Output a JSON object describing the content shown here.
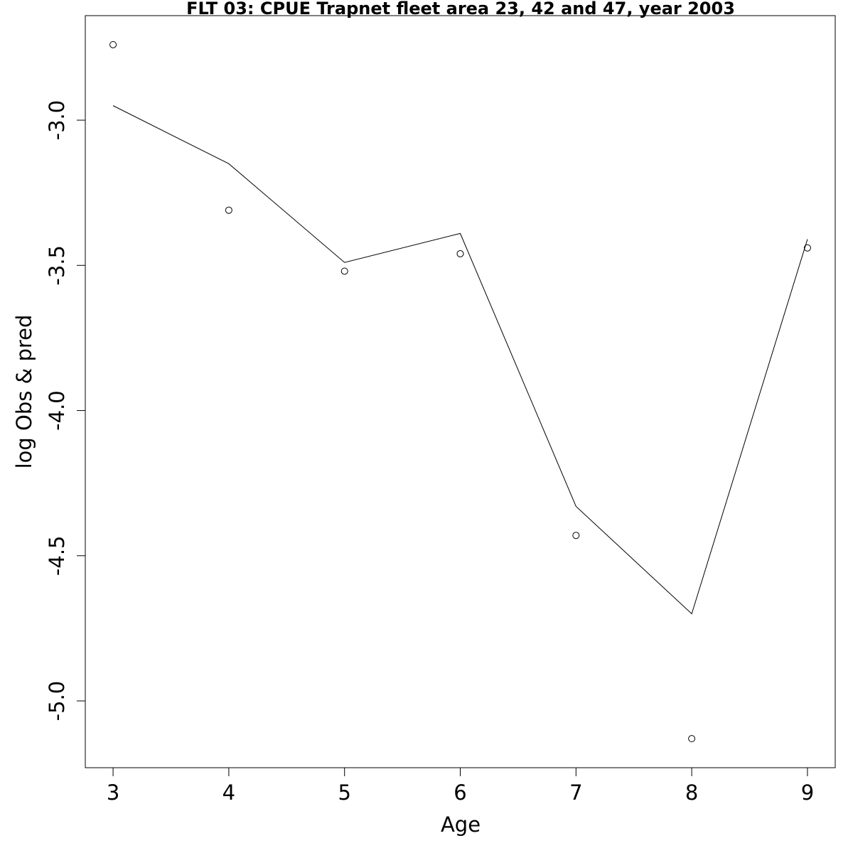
{
  "chart_data": {
    "type": "line",
    "title": "FLT 03: CPUE Trapnet fleet area 23, 42 and 47, year 2003",
    "xlabel": "Age",
    "ylabel": "log Obs & pred",
    "x": [
      3,
      4,
      5,
      6,
      7,
      8,
      9
    ],
    "xlim": [
      2.76,
      9.24
    ],
    "ylim": [
      -5.23,
      -2.64
    ],
    "x_ticks": [
      3,
      4,
      5,
      6,
      7,
      8,
      9
    ],
    "y_ticks": [
      -5.0,
      -4.5,
      -4.0,
      -3.5,
      -3.0
    ],
    "x_tick_labels": [
      "3",
      "4",
      "5",
      "6",
      "7",
      "8",
      "9"
    ],
    "y_tick_labels": [
      "-5.0",
      "-4.5",
      "-4.0",
      "-3.5",
      "-3.0"
    ],
    "grid": false,
    "series": [
      {
        "kind": "points",
        "marker": "open-circle",
        "values": [
          -2.74,
          -3.31,
          -3.52,
          -3.46,
          -4.43,
          -5.13,
          -3.44
        ]
      },
      {
        "kind": "line",
        "values": [
          -2.95,
          -3.15,
          -3.49,
          -3.39,
          -4.33,
          -4.7,
          -3.41
        ]
      }
    ],
    "colors": {
      "points": "#000000",
      "line": "#000000"
    }
  }
}
